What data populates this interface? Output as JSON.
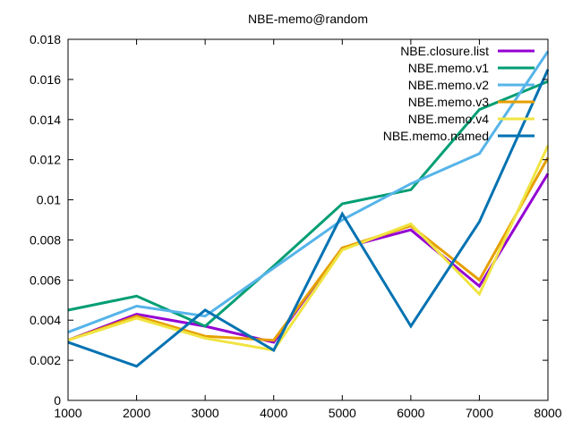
{
  "chart_data": {
    "type": "line",
    "title": "NBE-memo@random",
    "xlabel": "",
    "ylabel": "",
    "x": [
      1000,
      2000,
      3000,
      4000,
      5000,
      6000,
      7000,
      8000
    ],
    "xlim": [
      1000,
      8000
    ],
    "ylim": [
      0,
      0.018
    ],
    "x_ticks": [
      1000,
      2000,
      3000,
      4000,
      5000,
      6000,
      7000,
      8000
    ],
    "x_tick_labels": [
      "1000",
      "2000",
      "3000",
      "4000",
      "5000",
      "6000",
      "7000",
      "8000"
    ],
    "y_ticks": [
      0,
      0.002,
      0.004,
      0.006,
      0.008,
      0.01,
      0.012,
      0.014,
      0.016,
      0.018
    ],
    "y_tick_labels": [
      "0",
      "0.002",
      "0.004",
      "0.006",
      "0.008",
      "0.01",
      "0.012",
      "0.014",
      "0.016",
      "0.018"
    ],
    "grid": false,
    "legend_position": "top-right",
    "series": [
      {
        "name": "NBE.closure.list",
        "color": "#9400d3",
        "values": [
          0.003,
          0.0043,
          0.0037,
          0.0029,
          0.0076,
          0.0085,
          0.0057,
          0.0113
        ]
      },
      {
        "name": "NBE.memo.v1",
        "color": "#009e73",
        "values": [
          0.0045,
          0.0052,
          0.0037,
          0.0067,
          0.0098,
          0.0105,
          0.0145,
          0.0159
        ]
      },
      {
        "name": "NBE.memo.v2",
        "color": "#56b4e9",
        "values": [
          0.0034,
          0.0047,
          0.0042,
          0.0066,
          0.009,
          0.0108,
          0.0123,
          0.0174
        ]
      },
      {
        "name": "NBE.memo.v3",
        "color": "#e69f00",
        "values": [
          0.003,
          0.0042,
          0.0032,
          0.003,
          0.0076,
          0.0087,
          0.006,
          0.0121
        ]
      },
      {
        "name": "NBE.memo.v4",
        "color": "#f0e442",
        "values": [
          0.003,
          0.0041,
          0.0031,
          0.0025,
          0.0075,
          0.0088,
          0.0053,
          0.0127
        ]
      },
      {
        "name": "NBE.memo.named",
        "color": "#0072b2",
        "values": [
          0.0029,
          0.0017,
          0.0045,
          0.0025,
          0.0093,
          0.0037,
          0.0089,
          0.0165
        ]
      }
    ]
  }
}
